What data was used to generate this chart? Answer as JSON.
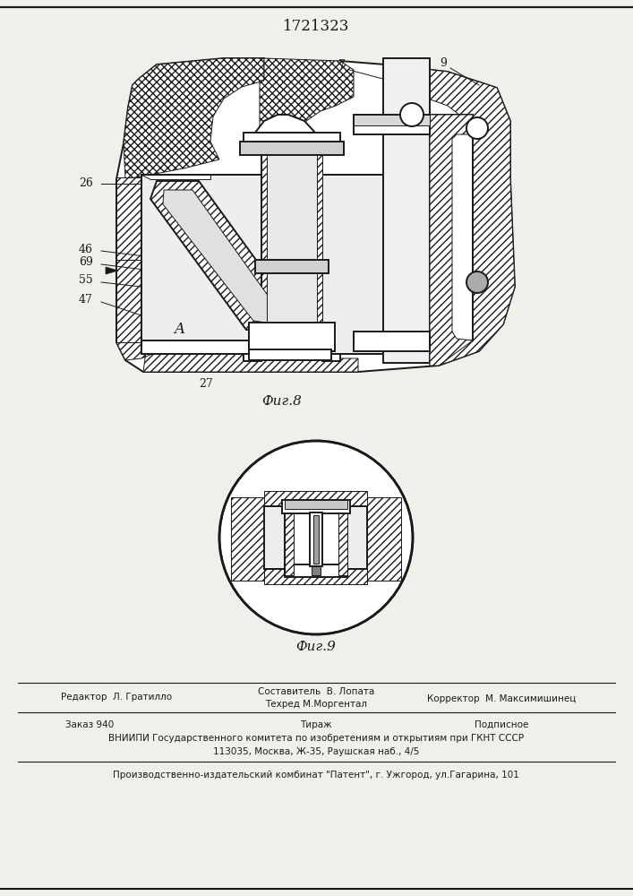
{
  "title": "1721323",
  "fig8_label": "Фиг.8",
  "fig9_label": "Фиг.9",
  "bg_color": "#f0f0eb",
  "line_color": "#1a1a1a"
}
